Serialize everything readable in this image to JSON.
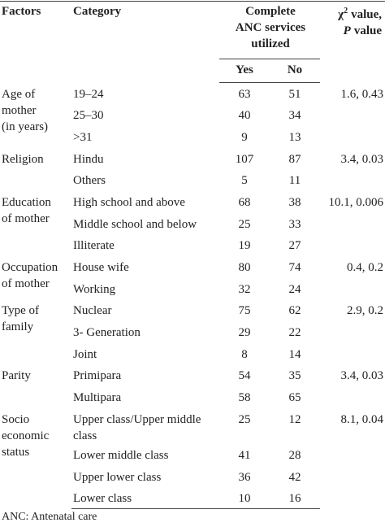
{
  "header": {
    "factors": "Factors",
    "category": "Category",
    "services": [
      "Complete",
      "ANC services",
      "utilized"
    ],
    "yes": "Yes",
    "no": "No",
    "chi": [
      "χ",
      "2",
      "value,",
      "P",
      "value"
    ]
  },
  "groups": [
    {
      "factor": [
        "Age of",
        "mother",
        "(in years)"
      ],
      "chi": "1.6, 0.43",
      "rows": [
        {
          "category": "19–24",
          "yes": 63,
          "no": 51
        },
        {
          "category": "25–30",
          "yes": 40,
          "no": 34
        },
        {
          "category": ">31",
          "yes": 9,
          "no": 13
        }
      ]
    },
    {
      "factor": [
        "Religion"
      ],
      "chi": "3.4, 0.03",
      "rows": [
        {
          "category": "Hindu",
          "yes": 107,
          "no": 87
        },
        {
          "category": "Others",
          "yes": 5,
          "no": 11
        }
      ]
    },
    {
      "factor": [
        "Education",
        "of mother"
      ],
      "chi": "10.1, 0.006",
      "rows": [
        {
          "category": "High school and above",
          "yes": 68,
          "no": 38
        },
        {
          "category": "Middle school and below",
          "yes": 25,
          "no": 33
        },
        {
          "category": "Illiterate",
          "yes": 19,
          "no": 27
        }
      ]
    },
    {
      "factor": [
        "Occupation",
        "of mother"
      ],
      "chi": "0.4, 0.2",
      "rows": [
        {
          "category": "House wife",
          "yes": 80,
          "no": 74
        },
        {
          "category": "Working",
          "yes": 32,
          "no": 24
        }
      ]
    },
    {
      "factor": [
        "Type of",
        "family"
      ],
      "chi": "2.9, 0.2",
      "rows": [
        {
          "category": "Nuclear",
          "yes": 75,
          "no": 62
        },
        {
          "category": "3- Generation",
          "yes": 29,
          "no": 22
        },
        {
          "category": "Joint",
          "yes": 8,
          "no": 14
        }
      ]
    },
    {
      "factor": [
        "Parity"
      ],
      "chi": "3.4, 0.03",
      "rows": [
        {
          "category": "Primipara",
          "yes": 54,
          "no": 35
        },
        {
          "category": "Multipara",
          "yes": 58,
          "no": 65
        }
      ]
    },
    {
      "factor": [
        "Socio",
        "economic",
        "status"
      ],
      "chi": "8.1, 0.04",
      "rows": [
        {
          "category": "Upper class/Upper middle class",
          "yes": 25,
          "no": 12
        },
        {
          "category": "Lower middle class",
          "yes": 41,
          "no": 28
        },
        {
          "category": "Upper lower class",
          "yes": 36,
          "no": 42
        },
        {
          "category": "Lower class",
          "yes": 10,
          "no": 16
        }
      ]
    }
  ],
  "footnote": "ANC: Antenatal care"
}
